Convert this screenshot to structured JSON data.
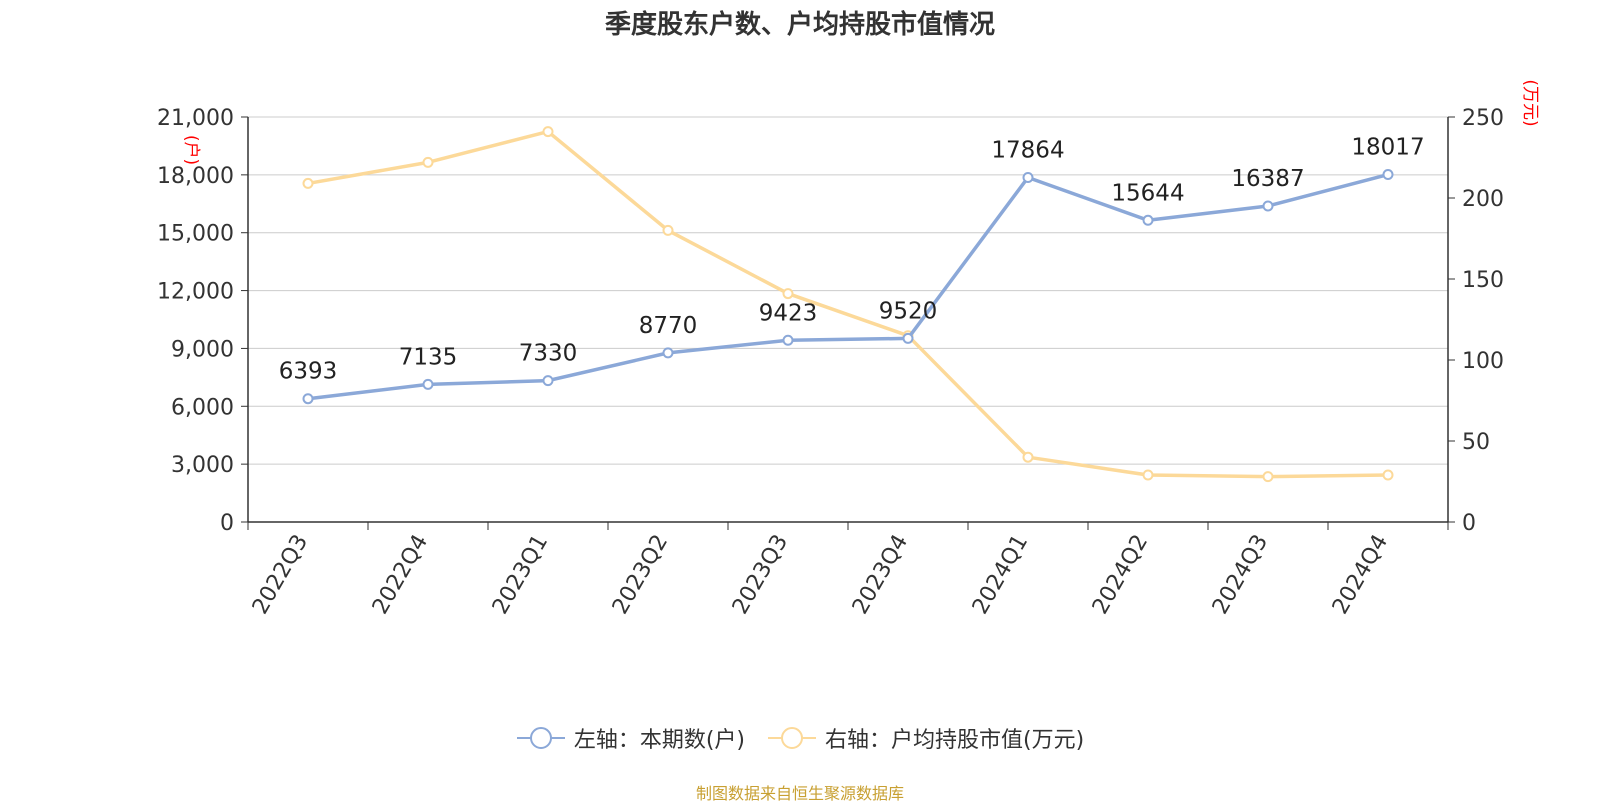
{
  "chart_data": {
    "type": "line",
    "title": "季度股东户数、户均持股市值情况",
    "categories": [
      "2022Q3",
      "2022Q4",
      "2023Q1",
      "2023Q2",
      "2023Q3",
      "2023Q4",
      "2024Q1",
      "2024Q2",
      "2024Q3",
      "2024Q4"
    ],
    "series": [
      {
        "name": "左轴：本期数(户)",
        "axis": "left",
        "color": "#8ba8d8",
        "values": [
          6393,
          7135,
          7330,
          8770,
          9423,
          9520,
          17864,
          15644,
          16387,
          18017
        ],
        "labels": [
          "6393",
          "7135",
          "7330",
          "8770",
          "9423",
          "9520",
          "17864",
          "15644",
          "16387",
          "18017"
        ]
      },
      {
        "name": "右轴：户均持股市值(万元)",
        "axis": "right",
        "color": "#fcd999",
        "values": [
          209,
          222,
          241,
          180,
          141,
          115,
          40,
          29,
          28,
          29
        ]
      }
    ],
    "left_axis": {
      "unit": "(户)",
      "min": 0,
      "max": 21000,
      "ticks": [
        0,
        3000,
        6000,
        9000,
        12000,
        15000,
        18000,
        21000
      ],
      "tick_labels": [
        "0",
        "3,000",
        "6,000",
        "9,000",
        "12,000",
        "15,000",
        "18,000",
        "21,000"
      ]
    },
    "right_axis": {
      "unit": "(万元)",
      "min": 0,
      "max": 250,
      "ticks": [
        0,
        50,
        100,
        150,
        200,
        250
      ],
      "tick_labels": [
        "0",
        "50",
        "100",
        "150",
        "200",
        "250"
      ]
    },
    "grid": true,
    "legend": "bottom",
    "source": "制图数据来自恒生聚源数据库"
  }
}
